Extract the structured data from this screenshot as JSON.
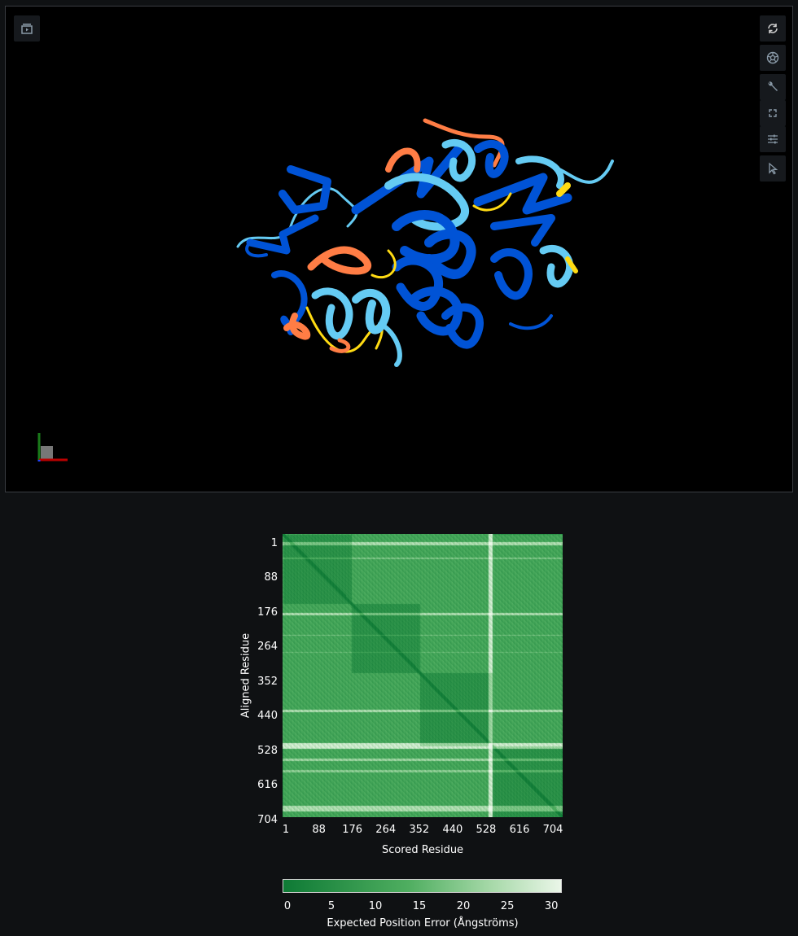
{
  "viewer": {
    "toolbar": [
      {
        "name": "reset-view-icon"
      },
      {
        "name": "screenshot-icon"
      },
      {
        "name": "settings-wrench-icon"
      },
      {
        "name": "fullscreen-icon"
      },
      {
        "name": "controls-sliders-icon"
      },
      {
        "name": "selection-cursor-icon"
      }
    ],
    "top_left_button": "expand-sequence-panel-icon",
    "colors": {
      "very_high": "#0053d6",
      "confident": "#65cbf3",
      "low": "#ffdb13",
      "very_low": "#ff7d45"
    }
  },
  "chart_data": {
    "type": "heatmap",
    "xlabel": "Scored Residue",
    "ylabel": "Aligned Residue",
    "x_ticks": [
      "1",
      "88",
      "176",
      "264",
      "352",
      "440",
      "528",
      "616",
      "704"
    ],
    "y_ticks": [
      "1",
      "88",
      "176",
      "264",
      "352",
      "440",
      "528",
      "616",
      "704"
    ],
    "n_residues": 720,
    "colorbar": {
      "label": "Expected Position Error (Ångströms)",
      "ticks": [
        "0",
        "5",
        "10",
        "15",
        "20",
        "25",
        "30"
      ],
      "range": [
        0,
        31.75
      ],
      "colors": [
        "#0e7a35",
        "#4fae60",
        "#a7d9a9",
        "#eaf6e8"
      ]
    }
  }
}
